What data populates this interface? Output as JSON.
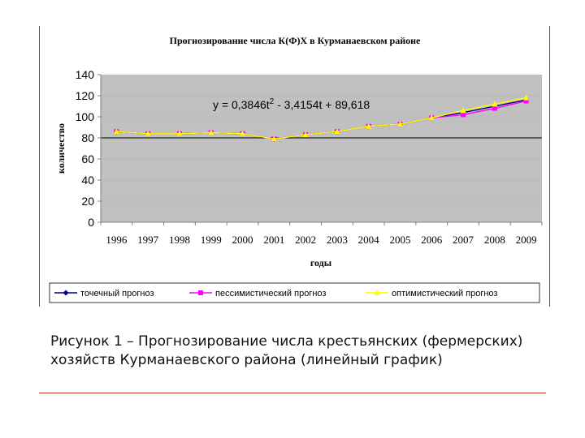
{
  "caption": "Рисунок 1 – Прогнозирование числа крестьянских (фермерских) хозяйств Курманаевского района (линейный график)",
  "chart_data": {
    "type": "line",
    "title": "Прогнозирование числа К(Ф)Х в Курманаевском районе",
    "xlabel": "годы",
    "ylabel": "количество",
    "annotation": "y = 0,3846t² - 3,4154t + 89,618",
    "x": [
      "1996",
      "1997",
      "1998",
      "1999",
      "2000",
      "2001",
      "2002",
      "2003",
      "2004",
      "2005",
      "2006",
      "2007",
      "2008",
      "2009"
    ],
    "ylim": [
      0,
      140
    ],
    "yticks": [
      0,
      20,
      40,
      60,
      80,
      100,
      120,
      140
    ],
    "grid": "horizontal",
    "reference_line": 80,
    "legend_position": "bottom",
    "plot_background": "#c0c0c0",
    "series": [
      {
        "name": "точечный прогноз",
        "color": "#000080",
        "marker": "diamond",
        "values": [
          86,
          84,
          84,
          85,
          84,
          79,
          83,
          86,
          91,
          93,
          99,
          104,
          110,
          116
        ]
      },
      {
        "name": "пессимистический прогноз",
        "color": "#ff00ff",
        "marker": "square",
        "values": [
          86,
          84,
          84,
          85,
          84,
          79,
          83,
          86,
          91,
          93,
          99,
          102,
          108,
          115
        ]
      },
      {
        "name": "оптимистический прогноз",
        "color": "#ffff00",
        "marker": "triangle",
        "values": [
          86,
          84,
          84,
          85,
          84,
          79,
          83,
          86,
          91,
          93,
          99,
          106,
          112,
          118
        ]
      }
    ]
  }
}
